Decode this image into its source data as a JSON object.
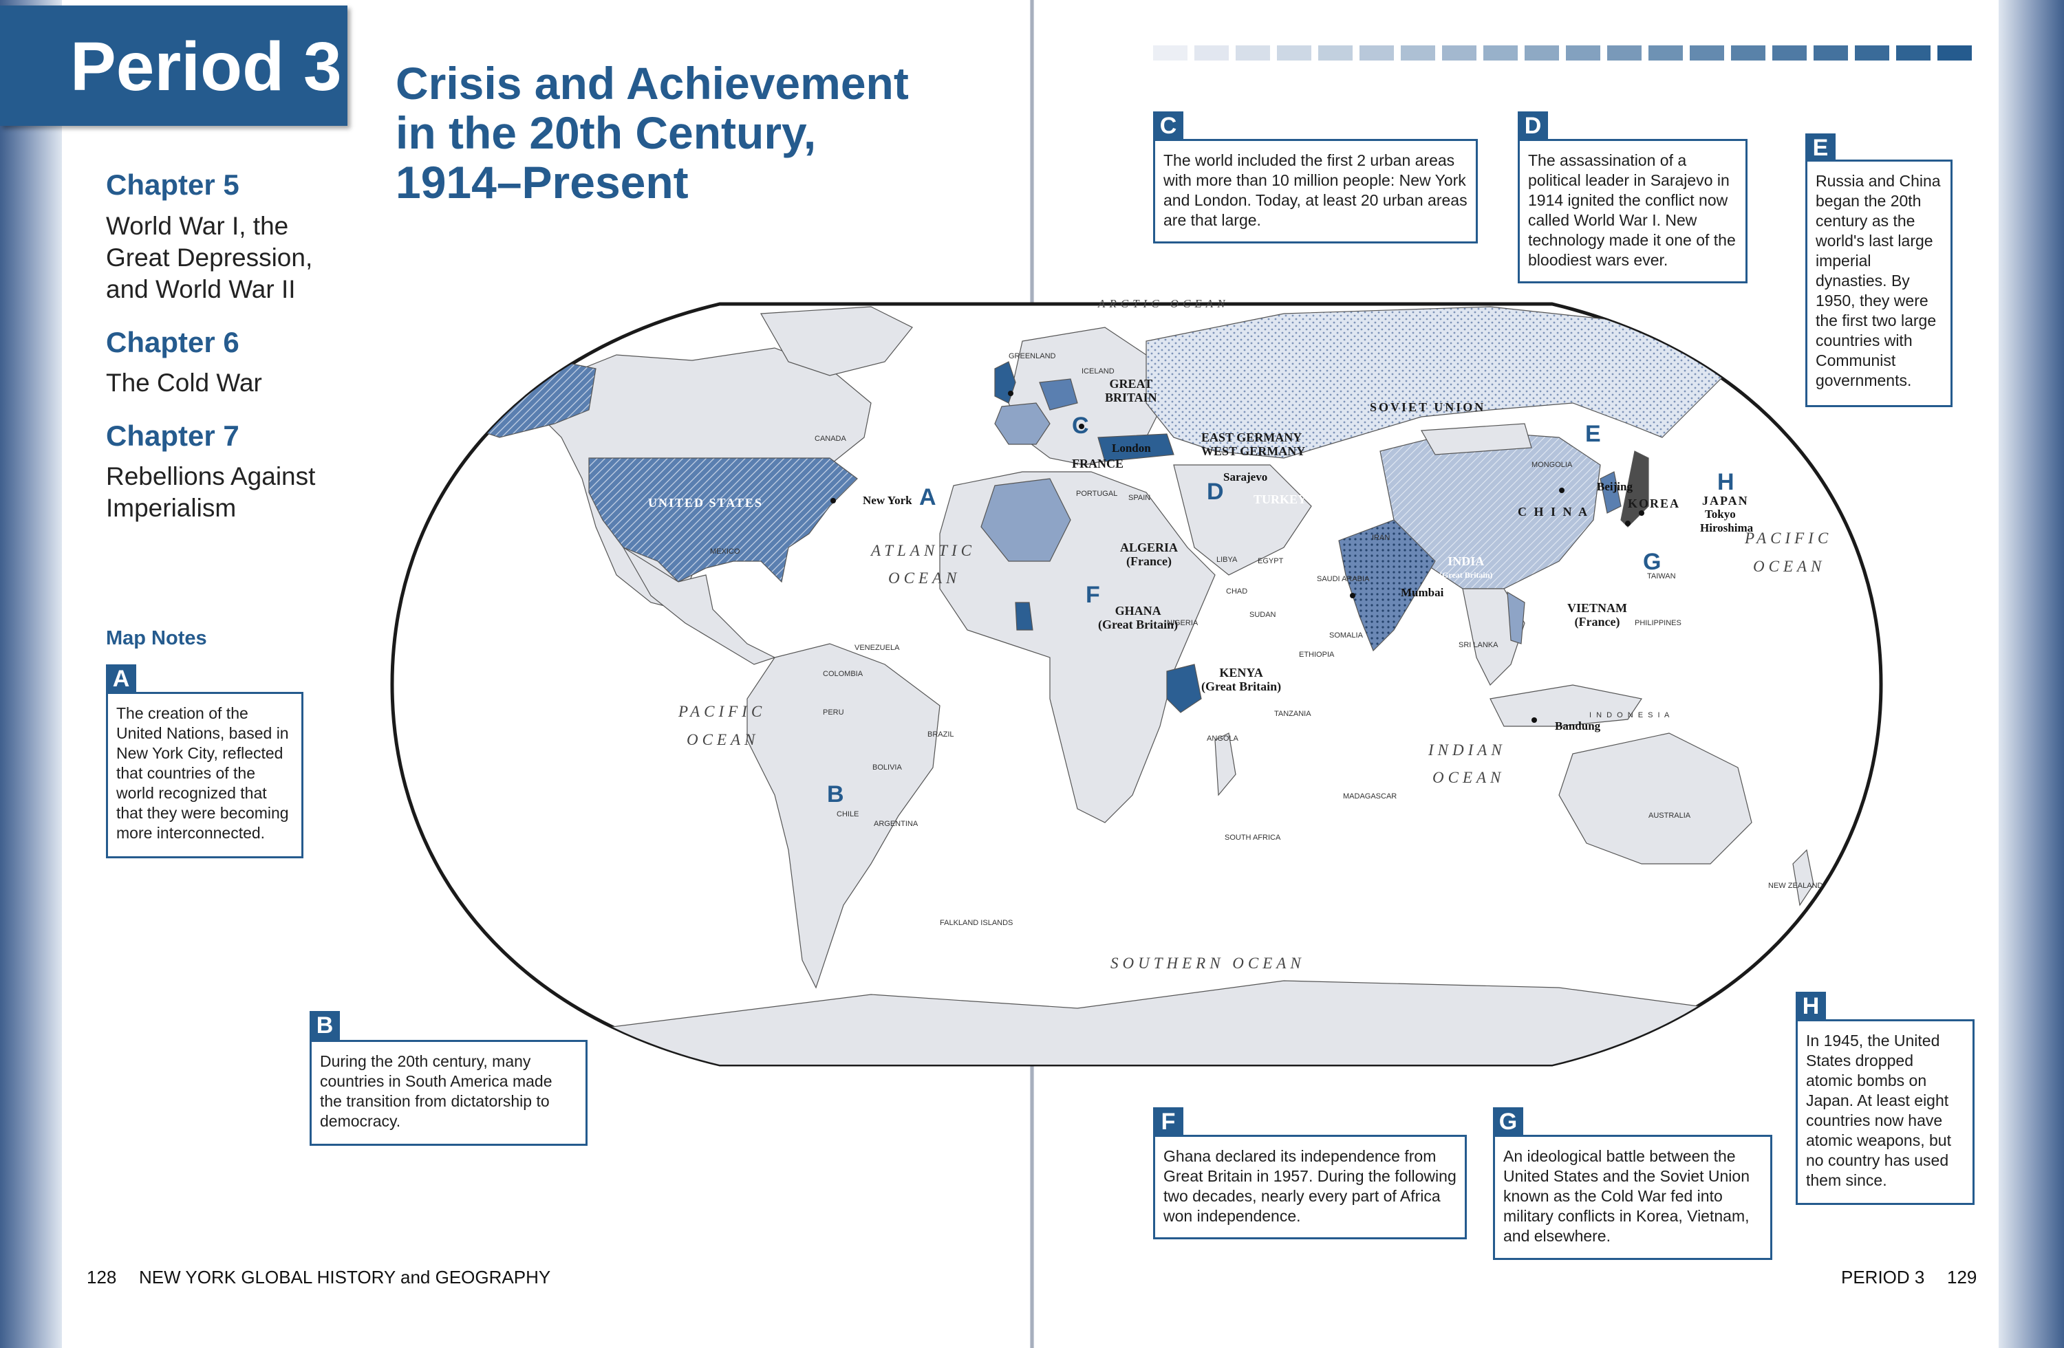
{
  "header": {
    "period_tab": "Period 3",
    "title_lines": [
      "Crisis and Achievement",
      "in the 20th Century,",
      "1914–Present"
    ]
  },
  "chapters": [
    {
      "heading": "Chapter 5",
      "lines": [
        "World War I, the",
        "Great Depression,",
        "and World War II"
      ]
    },
    {
      "heading": "Chapter 6",
      "lines": [
        "The Cold War"
      ]
    },
    {
      "heading": "Chapter 7",
      "lines": [
        "Rebellions Against",
        "Imperialism"
      ]
    }
  ],
  "map_notes_heading": "Map Notes",
  "notes": {
    "A": {
      "letter": "A",
      "text": "The creation of the United Nations, based in New York City, reflected that countries of the world recognized that that they were becoming more interconnected."
    },
    "B": {
      "letter": "B",
      "text": "During the 20th century, many countries in South America made the transition from dictatorship to democracy."
    },
    "C": {
      "letter": "C",
      "text": "The world included the first 2 urban areas with more than 10 million people: New York and London. Today, at least 20 urban areas are that large."
    },
    "D": {
      "letter": "D",
      "text": "The assassination of a political leader in Sarajevo in 1914 ignited the conflict now called World War I. New technology made it one of the bloodiest wars ever."
    },
    "E": {
      "letter": "E",
      "text": "Russia and China began the 20th century as the world's last large imperial dynasties. By 1950, they were the first two large countries with Communist governments."
    },
    "F": {
      "letter": "F",
      "text": "Ghana declared its independence from Great Britain in 1957. During the following two decades, nearly every part of Africa won independence."
    },
    "G": {
      "letter": "G",
      "text": "An ideological battle between the United States and the Soviet Union known as the Cold War fed into military conflicts in Korea, Vietnam, and elsewhere."
    },
    "H": {
      "letter": "H",
      "text": "In 1945, the United States dropped atomic bombs on Japan. At least eight countries now have atomic weapons, but no country has used them since."
    }
  },
  "footer": {
    "left_page": "128",
    "left_title": "NEW YORK GLOBAL HISTORY and GEOGRAPHY",
    "right_title": "PERIOD 3",
    "right_page": "129"
  },
  "map": {
    "oceans": {
      "arctic": "ARCTIC OCEAN",
      "atlantic_1": "ATLANTIC",
      "atlantic_2": "OCEAN",
      "pacific_w_1": "PACIFIC",
      "pacific_w_2": "OCEAN",
      "pacific_e_1": "PACIFIC",
      "pacific_e_2": "OCEAN",
      "indian_1": "INDIAN",
      "indian_2": "OCEAN",
      "southern": "SOUTHERN   OCEAN"
    },
    "countries": {
      "united_states": "UNITED STATES",
      "soviet_union": "SOVIET UNION",
      "china": "C H I N A",
      "great_britain_1": "GREAT",
      "great_britain_2": "BRITAIN",
      "france": "FRANCE",
      "east_germany": "EAST GERMANY",
      "west_germany": "WEST GERMANY",
      "turkey": "TURKEY",
      "algeria_1": "ALGERIA",
      "algeria_2": "(France)",
      "ghana_1": "GHANA",
      "ghana_2": "(Great Britain)",
      "kenya_1": "KENYA",
      "kenya_2": "(Great Britain)",
      "india_1": "INDIA",
      "india_2": "(Great Britain)",
      "vietnam_1": "VIETNAM",
      "vietnam_2": "(France)",
      "korea": "KOREA",
      "japan": "JAPAN"
    },
    "cities": {
      "new_york": "New York",
      "london": "London",
      "sarajevo": "Sarajevo",
      "beijing": "Beijing",
      "tokyo": "Tokyo",
      "hiroshima": "Hiroshima",
      "mumbai": "Mumbai",
      "bandung": "Bandung"
    },
    "minor": {
      "canada": "CANADA",
      "greenland": "GREENLAND",
      "iceland": "ICELAND",
      "mexico": "MEXICO",
      "venezuela": "VENEZUELA",
      "colombia": "COLOMBIA",
      "peru": "PERU",
      "brazil": "BRAZIL",
      "bolivia": "BOLIVIA",
      "chile": "CHILE",
      "argentina": "ARGENTINA",
      "mongolia": "MONGOLIA",
      "iran": "IRAN",
      "libya": "LIBYA",
      "egypt": "EGYPT",
      "chad": "CHAD",
      "sudan": "SUDAN",
      "ethiopia": "ETHIOPIA",
      "angola": "ANGOLA",
      "tanzania": "TANZANIA",
      "madagascar": "MADAGASCAR",
      "south_africa": "SOUTH AFRICA",
      "australia": "AUSTRALIA",
      "new_zealand": "NEW ZEALAND",
      "indonesia": "I N D O N E S I A",
      "philippines": "PHILIPPINES",
      "taiwan": "TAIWAN",
      "sri_lanka": "SRI LANKA",
      "saudi_arabia": "SAUDI ARABIA",
      "nigeria": "NIGERIA",
      "portugal": "PORTUGAL",
      "spain": "SPAIN",
      "somalia": "SOMALIA",
      "falkland": "FALKLAND ISLANDS"
    },
    "letters": [
      "A",
      "B",
      "C",
      "D",
      "E",
      "F",
      "G",
      "H"
    ]
  },
  "colors": {
    "accent": "#255b8e",
    "land": "#e3e5ea",
    "highlight_dark": "#2c5f93",
    "highlight_mid": "#8ea4c6",
    "highlight_light": "#cdd6e6"
  }
}
